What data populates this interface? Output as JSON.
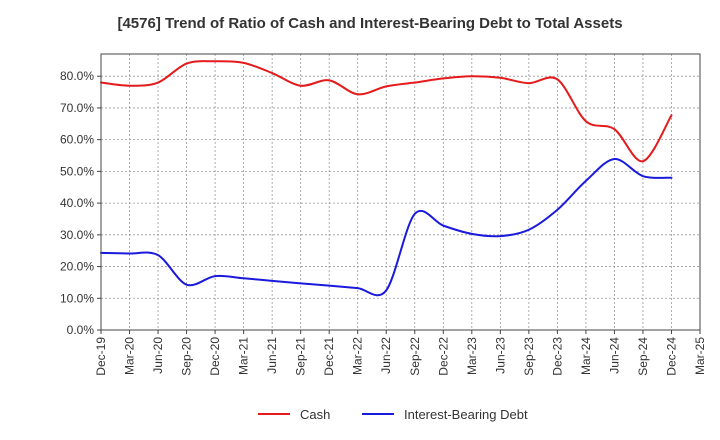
{
  "chart_data": {
    "type": "line",
    "title": "[4576]  Trend of Ratio of Cash and Interest-Bearing Debt to Total Assets",
    "xlabel": "",
    "ylabel": "",
    "ylim": [
      0,
      87
    ],
    "y_ticks": [
      0,
      10,
      20,
      30,
      40,
      50,
      60,
      70,
      80
    ],
    "y_tick_labels": [
      "0.0%",
      "10.0%",
      "20.0%",
      "30.0%",
      "40.0%",
      "50.0%",
      "60.0%",
      "70.0%",
      "80.0%"
    ],
    "grid": true,
    "legend_position": "bottom-center",
    "categories": [
      "Dec-19",
      "Mar-20",
      "Jun-20",
      "Sep-20",
      "Dec-20",
      "Mar-21",
      "Jun-21",
      "Sep-21",
      "Dec-21",
      "Mar-22",
      "Jun-22",
      "Sep-22",
      "Dec-22",
      "Mar-23",
      "Jun-23",
      "Sep-23",
      "Dec-23",
      "Mar-24",
      "Jun-24",
      "Sep-24",
      "Dec-24",
      "Mar-25"
    ],
    "series": [
      {
        "name": "Cash",
        "color": "#e41a1c",
        "values": [
          78.0,
          77.0,
          78.0,
          84.0,
          84.7,
          84.2,
          81.0,
          77.0,
          78.7,
          74.3,
          76.8,
          78.0,
          79.3,
          80.0,
          79.5,
          77.8,
          79.0,
          65.8,
          63.3,
          53.2,
          67.7,
          null
        ]
      },
      {
        "name": "Interest-Bearing Debt",
        "color": "#1a1adc",
        "values": [
          24.3,
          24.1,
          23.6,
          14.3,
          17.0,
          16.3,
          15.5,
          14.7,
          14.0,
          13.2,
          12.5,
          36.6,
          32.9,
          30.3,
          29.6,
          31.6,
          37.9,
          47.0,
          53.9,
          48.5,
          48.0,
          null
        ]
      }
    ]
  }
}
